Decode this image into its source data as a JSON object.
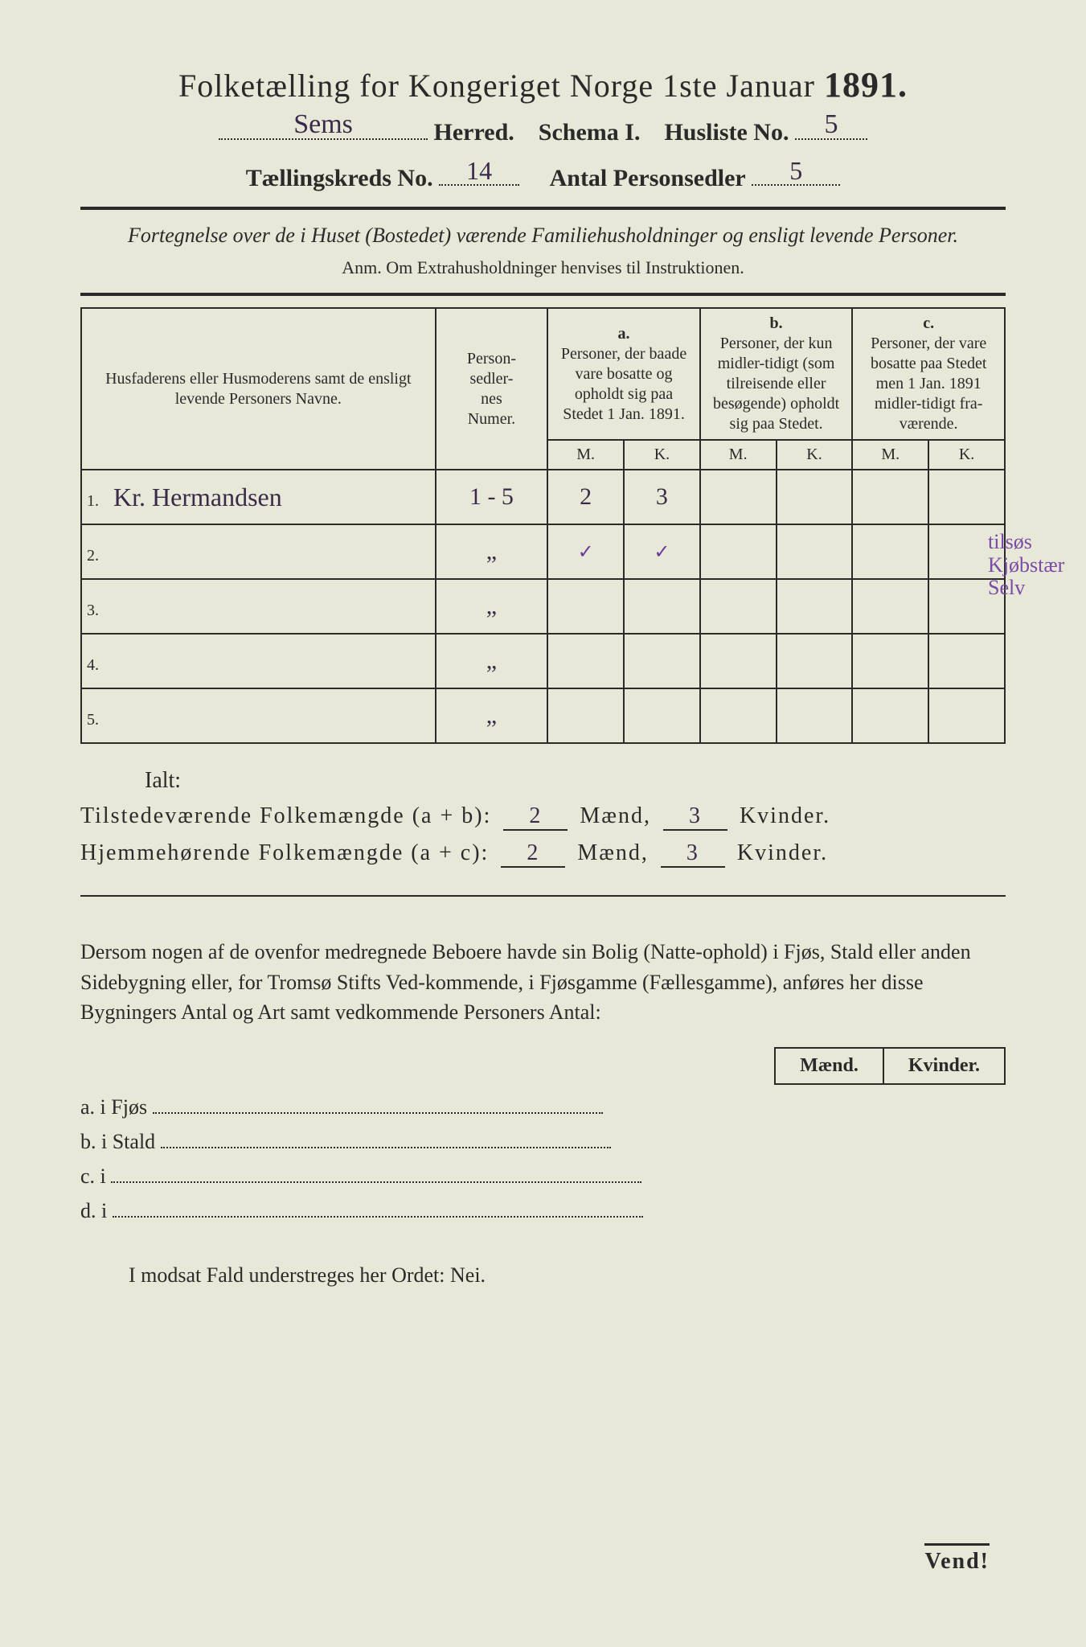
{
  "header": {
    "title_left": "Folketælling for Kongeriget Norge 1ste Januar",
    "year": "1891.",
    "herred_label": "Herred.",
    "herred_value": "Sems",
    "schema_label": "Schema I.",
    "husliste_label": "Husliste No.",
    "husliste_value": "5",
    "kreds_label": "Tællingskreds No.",
    "kreds_value": "14",
    "antal_label": "Antal Personsedler",
    "antal_value": "5"
  },
  "instructions": {
    "line": "Fortegnelse over de i Huset (Bostedet) værende Familiehusholdninger og ensligt levende Personer.",
    "anm": "Anm.  Om Extrahusholdninger henvises til Instruktionen."
  },
  "columns": {
    "name": "Husfaderens eller Husmoderens samt de ensligt levende Personers Navne.",
    "numer": "Person-\nsedler-\nnes\nNumer.",
    "a_label": "a.",
    "a_text": "Personer, der baade vare bosatte og opholdt sig paa Stedet 1 Jan. 1891.",
    "b_label": "b.",
    "b_text": "Personer, der kun midler-tidigt (som tilreisende eller besøgende) opholdt sig paa Stedet.",
    "c_label": "c.",
    "c_text": "Personer, der vare bosatte paa Stedet men 1 Jan. 1891 midler-tidigt fra-værende.",
    "m": "M.",
    "k": "K."
  },
  "rows": [
    {
      "n": "1.",
      "name": "Kr. Hermandsen",
      "numer": "1 - 5",
      "a_m": "2",
      "a_k": "3",
      "b_m": "",
      "b_k": "",
      "c_m": "",
      "c_k": ""
    },
    {
      "n": "2.",
      "name": "",
      "numer": "„",
      "a_m": "✓",
      "a_k": "✓",
      "b_m": "",
      "b_k": "",
      "c_m": "",
      "c_k": ""
    },
    {
      "n": "3.",
      "name": "",
      "numer": "„",
      "a_m": "",
      "a_k": "",
      "b_m": "",
      "b_k": "",
      "c_m": "",
      "c_k": ""
    },
    {
      "n": "4.",
      "name": "",
      "numer": "„",
      "a_m": "",
      "a_k": "",
      "b_m": "",
      "b_k": "",
      "c_m": "",
      "c_k": ""
    },
    {
      "n": "5.",
      "name": "",
      "numer": "„",
      "a_m": "",
      "a_k": "",
      "b_m": "",
      "b_k": "",
      "c_m": "",
      "c_k": ""
    }
  ],
  "margin_note": "tilsøs Kjøbstær Selv",
  "totals": {
    "ialt": "Ialt:",
    "line1_label": "Tilstedeværende Folkemængde (a + b):",
    "line1_m": "2",
    "line1_k": "3",
    "line2_label": "Hjemmehørende Folkemængde (a + c):",
    "line2_m": "2",
    "line2_k": "3",
    "maend": "Mænd,",
    "kvinder": "Kvinder."
  },
  "paragraph": "Dersom nogen af de ovenfor medregnede Beboere havde sin Bolig (Natte-ophold) i Fjøs, Stald eller anden Sidebygning eller, for Tromsø Stifts Ved-kommende, i Fjøsgamme (Fællesgamme), anføres her disse Bygningers Antal og Art samt vedkommende Personers Antal:",
  "subheads": {
    "maend": "Mænd.",
    "kvinder": "Kvinder."
  },
  "sublines": {
    "a": "a.  i      Fjøs",
    "b": "b.  i      Stald",
    "c": "c.  i",
    "d": "d.  i"
  },
  "nei": "I modsat Fald understreges her Ordet: Nei.",
  "vend": "Vend!"
}
